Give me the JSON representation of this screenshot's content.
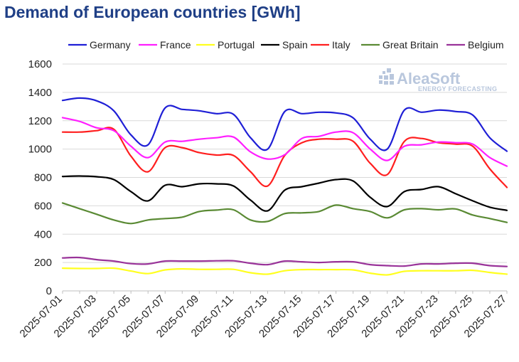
{
  "chart_data": {
    "type": "line",
    "title": "Demand of European countries [GWh]",
    "ylim": [
      0,
      1600
    ],
    "yticks": [
      0,
      200,
      400,
      600,
      800,
      1000,
      1200,
      1400,
      1600
    ],
    "xtick_labels": [
      "2025-07-01",
      "2025-07-03",
      "2025-07-05",
      "2025-07-07",
      "2025-07-09",
      "2025-07-11",
      "2025-07-13",
      "2025-07-15",
      "2025-07-17",
      "2025-07-19",
      "2025-07-21",
      "2025-07-23",
      "2025-07-25",
      "2025-07-27"
    ],
    "x": [
      "2025-07-01",
      "2025-07-02",
      "2025-07-03",
      "2025-07-04",
      "2025-07-05",
      "2025-07-06",
      "2025-07-07",
      "2025-07-08",
      "2025-07-09",
      "2025-07-10",
      "2025-07-11",
      "2025-07-12",
      "2025-07-13",
      "2025-07-14",
      "2025-07-15",
      "2025-07-16",
      "2025-07-17",
      "2025-07-18",
      "2025-07-19",
      "2025-07-20",
      "2025-07-21",
      "2025-07-22",
      "2025-07-23",
      "2025-07-24",
      "2025-07-25",
      "2025-07-26",
      "2025-07-27"
    ],
    "grid": true,
    "legend_position": "top",
    "series": [
      {
        "name": "Germany",
        "color": "#1f1fd6",
        "values": [
          1343,
          1360,
          1340,
          1270,
          1100,
          1030,
          1290,
          1280,
          1270,
          1250,
          1245,
          1080,
          1000,
          1265,
          1250,
          1260,
          1255,
          1220,
          1070,
          1000,
          1275,
          1260,
          1275,
          1265,
          1240,
          1080,
          985
        ]
      },
      {
        "name": "France",
        "color": "#ff1fff",
        "values": [
          1222,
          1195,
          1150,
          1130,
          1020,
          940,
          1050,
          1055,
          1070,
          1080,
          1085,
          980,
          930,
          960,
          1075,
          1090,
          1120,
          1115,
          1000,
          920,
          1020,
          1030,
          1050,
          1045,
          1035,
          940,
          880
        ]
      },
      {
        "name": "Portugal",
        "color": "#ffff1f",
        "values": [
          160,
          158,
          158,
          160,
          140,
          122,
          148,
          155,
          152,
          152,
          152,
          128,
          118,
          142,
          150,
          150,
          150,
          148,
          125,
          113,
          138,
          142,
          142,
          142,
          145,
          130,
          118
        ]
      },
      {
        "name": "Spain",
        "color": "#000000",
        "values": [
          807,
          810,
          805,
          785,
          700,
          635,
          745,
          735,
          755,
          755,
          740,
          640,
          565,
          710,
          735,
          760,
          785,
          775,
          660,
          595,
          700,
          715,
          735,
          685,
          635,
          590,
          568
        ]
      },
      {
        "name": "Italy",
        "color": "#ff1f1f",
        "values": [
          1120,
          1120,
          1130,
          1140,
          950,
          840,
          1010,
          1010,
          975,
          958,
          955,
          840,
          740,
          955,
          1045,
          1070,
          1070,
          1055,
          900,
          820,
          1055,
          1075,
          1045,
          1035,
          1020,
          860,
          730
        ]
      },
      {
        "name": "Great Britain",
        "color": "#5a8a34",
        "values": [
          620,
          580,
          540,
          500,
          475,
          500,
          510,
          520,
          560,
          570,
          572,
          500,
          490,
          545,
          550,
          560,
          605,
          580,
          560,
          515,
          572,
          580,
          572,
          578,
          535,
          510,
          483
        ]
      },
      {
        "name": "Belgium",
        "color": "#993399",
        "values": [
          232,
          235,
          220,
          210,
          192,
          190,
          210,
          210,
          210,
          212,
          212,
          195,
          185,
          210,
          205,
          200,
          205,
          205,
          185,
          178,
          175,
          190,
          190,
          195,
          195,
          178,
          172
        ]
      }
    ]
  },
  "watermark": {
    "name": "AleaSoft",
    "tagline": "ENERGY FORECASTING"
  }
}
